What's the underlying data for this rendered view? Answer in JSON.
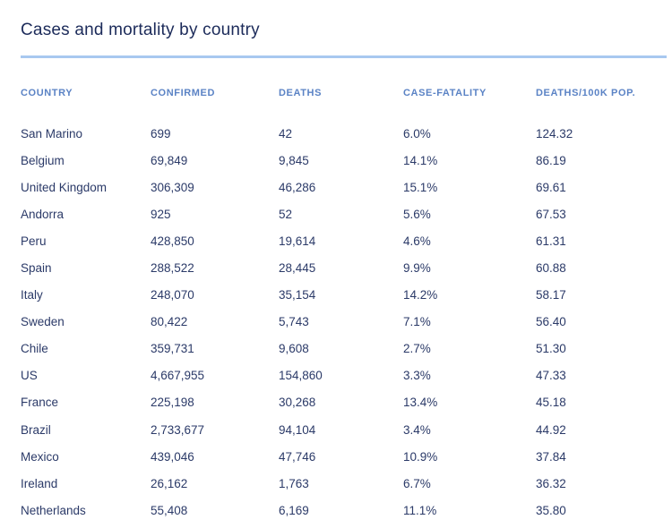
{
  "page": {
    "title": "Cases and mortality by country"
  },
  "table": {
    "columns": [
      {
        "key": "country",
        "label": "COUNTRY"
      },
      {
        "key": "confirmed",
        "label": "CONFIRMED"
      },
      {
        "key": "deaths",
        "label": "DEATHS"
      },
      {
        "key": "case_fatality",
        "label": "CASE-FATALITY"
      },
      {
        "key": "deaths_100k",
        "label": "DEATHS/100K POP."
      }
    ],
    "rows": [
      [
        "San Marino",
        "699",
        "42",
        "6.0%",
        "124.32"
      ],
      [
        "Belgium",
        "69,849",
        "9,845",
        "14.1%",
        "86.19"
      ],
      [
        "United Kingdom",
        "306,309",
        "46,286",
        "15.1%",
        "69.61"
      ],
      [
        "Andorra",
        "925",
        "52",
        "5.6%",
        "67.53"
      ],
      [
        "Peru",
        "428,850",
        "19,614",
        "4.6%",
        "61.31"
      ],
      [
        "Spain",
        "288,522",
        "28,445",
        "9.9%",
        "60.88"
      ],
      [
        "Italy",
        "248,070",
        "35,154",
        "14.2%",
        "58.17"
      ],
      [
        "Sweden",
        "80,422",
        "5,743",
        "7.1%",
        "56.40"
      ],
      [
        "Chile",
        "359,731",
        "9,608",
        "2.7%",
        "51.30"
      ],
      [
        "US",
        "4,667,955",
        "154,860",
        "3.3%",
        "47.33"
      ],
      [
        "France",
        "225,198",
        "30,268",
        "13.4%",
        "45.18"
      ],
      [
        "Brazil",
        "2,733,677",
        "94,104",
        "3.4%",
        "44.92"
      ],
      [
        "Mexico",
        "439,046",
        "47,746",
        "10.9%",
        "37.84"
      ],
      [
        "Ireland",
        "26,162",
        "1,763",
        "6.7%",
        "36.32"
      ],
      [
        "Netherlands",
        "55,408",
        "6,169",
        "11.1%",
        "35.80"
      ]
    ]
  },
  "chart_data": {
    "type": "table",
    "title": "Cases and mortality by country",
    "columns": [
      "COUNTRY",
      "CONFIRMED",
      "DEATHS",
      "CASE-FATALITY",
      "DEATHS/100K POP."
    ],
    "rows": [
      {
        "country": "San Marino",
        "confirmed": 699,
        "deaths": 42,
        "case_fatality_pct": 6.0,
        "deaths_per_100k": 124.32
      },
      {
        "country": "Belgium",
        "confirmed": 69849,
        "deaths": 9845,
        "case_fatality_pct": 14.1,
        "deaths_per_100k": 86.19
      },
      {
        "country": "United Kingdom",
        "confirmed": 306309,
        "deaths": 46286,
        "case_fatality_pct": 15.1,
        "deaths_per_100k": 69.61
      },
      {
        "country": "Andorra",
        "confirmed": 925,
        "deaths": 52,
        "case_fatality_pct": 5.6,
        "deaths_per_100k": 67.53
      },
      {
        "country": "Peru",
        "confirmed": 428850,
        "deaths": 19614,
        "case_fatality_pct": 4.6,
        "deaths_per_100k": 61.31
      },
      {
        "country": "Spain",
        "confirmed": 288522,
        "deaths": 28445,
        "case_fatality_pct": 9.9,
        "deaths_per_100k": 60.88
      },
      {
        "country": "Italy",
        "confirmed": 248070,
        "deaths": 35154,
        "case_fatality_pct": 14.2,
        "deaths_per_100k": 58.17
      },
      {
        "country": "Sweden",
        "confirmed": 80422,
        "deaths": 5743,
        "case_fatality_pct": 7.1,
        "deaths_per_100k": 56.4
      },
      {
        "country": "Chile",
        "confirmed": 359731,
        "deaths": 9608,
        "case_fatality_pct": 2.7,
        "deaths_per_100k": 51.3
      },
      {
        "country": "US",
        "confirmed": 4667955,
        "deaths": 154860,
        "case_fatality_pct": 3.3,
        "deaths_per_100k": 47.33
      },
      {
        "country": "France",
        "confirmed": 225198,
        "deaths": 30268,
        "case_fatality_pct": 13.4,
        "deaths_per_100k": 45.18
      },
      {
        "country": "Brazil",
        "confirmed": 2733677,
        "deaths": 94104,
        "case_fatality_pct": 3.4,
        "deaths_per_100k": 44.92
      },
      {
        "country": "Mexico",
        "confirmed": 439046,
        "deaths": 47746,
        "case_fatality_pct": 10.9,
        "deaths_per_100k": 37.84
      },
      {
        "country": "Ireland",
        "confirmed": 26162,
        "deaths": 1763,
        "case_fatality_pct": 6.7,
        "deaths_per_100k": 36.32
      },
      {
        "country": "Netherlands",
        "confirmed": 55408,
        "deaths": 6169,
        "case_fatality_pct": 11.1,
        "deaths_per_100k": 35.8
      }
    ]
  },
  "colors": {
    "title": "#1c2b5a",
    "header": "#5b83c5",
    "body": "#2b3a68",
    "divider": "#a8c8f0",
    "background": "#ffffff"
  }
}
